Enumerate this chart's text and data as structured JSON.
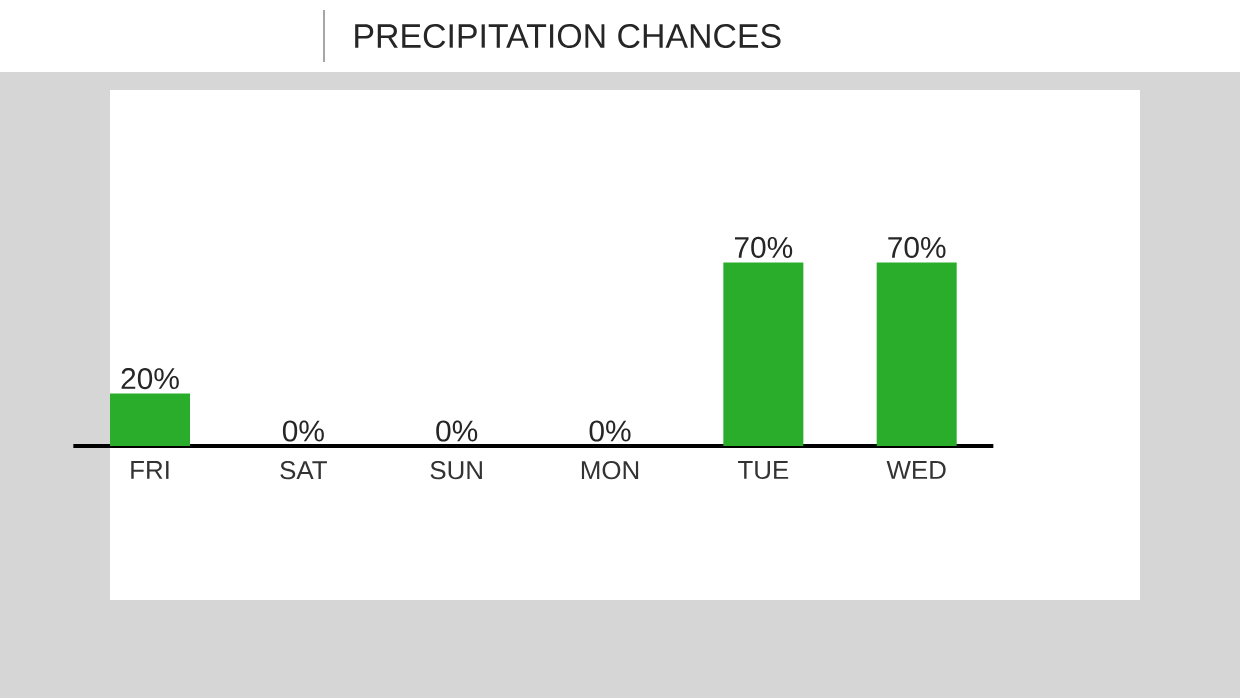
{
  "chart_data": {
    "type": "bar",
    "title": "PRECIPITATION CHANCES",
    "categories": [
      "FRI",
      "SAT",
      "SUN",
      "MON",
      "TUE",
      "WED"
    ],
    "values": [
      20,
      0,
      0,
      0,
      70,
      70
    ],
    "value_labels": [
      "20%",
      "0%",
      "0%",
      "0%",
      "70%",
      "70%"
    ],
    "color": "#2aad2a"
  }
}
